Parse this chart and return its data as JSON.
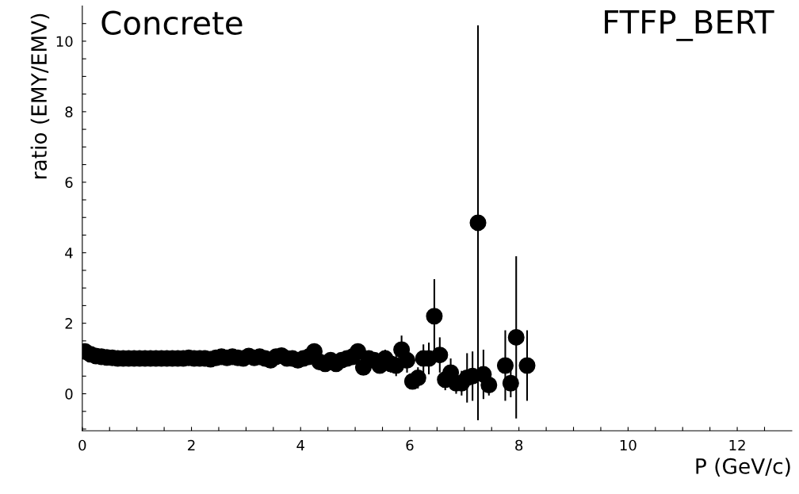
{
  "chart_data": {
    "type": "scatter",
    "xlabel": "P (GeV/c)",
    "ylabel": "ratio (EMY/EMV)",
    "annotations": [
      "Concrete",
      "FTFP_BERT"
    ],
    "x": [
      0.05,
      0.15,
      0.25,
      0.35,
      0.45,
      0.55,
      0.65,
      0.75,
      0.85,
      0.95,
      1.05,
      1.15,
      1.25,
      1.35,
      1.45,
      1.55,
      1.65,
      1.75,
      1.85,
      1.95,
      2.05,
      2.15,
      2.25,
      2.35,
      2.45,
      2.55,
      2.65,
      2.75,
      2.85,
      2.95,
      3.05,
      3.15,
      3.25,
      3.35,
      3.45,
      3.55,
      3.65,
      3.75,
      3.85,
      3.95,
      4.05,
      4.15,
      4.25,
      4.35,
      4.45,
      4.55,
      4.65,
      4.75,
      4.85,
      4.95,
      5.05,
      5.15,
      5.25,
      5.35,
      5.45,
      5.55,
      5.65,
      5.75,
      5.85,
      5.95,
      6.05,
      6.15,
      6.25,
      6.35,
      6.45,
      6.55,
      6.65,
      6.75,
      6.85,
      6.95,
      7.05,
      7.15,
      7.25,
      7.35,
      7.45,
      7.75,
      7.85,
      7.95,
      8.15
    ],
    "series": [
      {
        "color": "#000000",
        "values": [
          1.2,
          1.12,
          1.07,
          1.05,
          1.03,
          1.02,
          1.0,
          1.0,
          1.0,
          1.0,
          1.0,
          1.0,
          1.0,
          1.0,
          1.0,
          1.0,
          1.0,
          1.0,
          1.0,
          1.02,
          1.0,
          1.0,
          1.0,
          0.98,
          1.02,
          1.05,
          1.02,
          1.05,
          1.02,
          1.0,
          1.07,
          1.02,
          1.05,
          1.0,
          0.95,
          1.05,
          1.08,
          1.0,
          1.0,
          0.95,
          1.0,
          1.05,
          1.2,
          0.9,
          0.85,
          0.95,
          0.85,
          0.95,
          1.0,
          1.05,
          1.2,
          0.75,
          1.0,
          0.95,
          0.8,
          1.0,
          0.85,
          0.8,
          1.25,
          0.95,
          0.35,
          0.45,
          1.0,
          1.0,
          2.2,
          1.1,
          0.4,
          0.6,
          0.3,
          0.3,
          0.45,
          0.5,
          4.85,
          0.55,
          0.25,
          0.8,
          0.3,
          1.6,
          0.8
        ],
        "errors": [
          null,
          null,
          null,
          null,
          null,
          null,
          null,
          null,
          null,
          null,
          null,
          null,
          null,
          null,
          null,
          null,
          null,
          null,
          null,
          null,
          null,
          null,
          null,
          null,
          null,
          null,
          null,
          null,
          null,
          null,
          null,
          null,
          null,
          null,
          null,
          null,
          null,
          null,
          null,
          null,
          null,
          null,
          null,
          null,
          null,
          null,
          null,
          null,
          null,
          null,
          0.15,
          0.2,
          0.2,
          0.2,
          0.2,
          0.25,
          0.25,
          0.3,
          0.4,
          0.35,
          0.2,
          0.3,
          0.4,
          0.45,
          1.05,
          0.5,
          0.3,
          0.4,
          0.3,
          0.35,
          0.7,
          0.7,
          5.6,
          0.7,
          0.3,
          1.0,
          0.4,
          2.3,
          1.0
        ]
      }
    ],
    "xlim": [
      0,
      13
    ],
    "ylim": [
      -1.05,
      11
    ],
    "marker": "circle",
    "xticks": [
      0,
      {
        "value": 0.5,
        "label": null
      },
      {
        "value": 1,
        "label": null
      },
      {
        "value": 1.5,
        "label": null
      },
      2,
      {
        "value": 2.5,
        "label": null
      },
      {
        "value": 3,
        "label": null
      },
      {
        "value": 3.5,
        "label": null
      },
      4,
      {
        "value": 4.5,
        "label": null
      },
      {
        "value": 5,
        "label": null
      },
      {
        "value": 5.5,
        "label": null
      },
      6,
      {
        "value": 6.5,
        "label": null
      },
      {
        "value": 7,
        "label": null
      },
      {
        "value": 7.5,
        "label": null
      },
      8,
      {
        "value": 8.5,
        "label": null
      },
      {
        "value": 9,
        "label": null
      },
      {
        "value": 9.5,
        "label": null
      },
      10,
      {
        "value": 10.5,
        "label": null
      },
      {
        "value": 11,
        "label": null
      },
      {
        "value": 11.5,
        "label": null
      },
      12,
      {
        "value": 12.5,
        "label": null
      }
    ],
    "yticks": [
      {
        "value": -1,
        "label": null
      },
      {
        "value": -0.5,
        "label": null
      },
      0,
      {
        "value": 0.5,
        "label": null
      },
      {
        "value": 1,
        "label": null
      },
      {
        "value": 1.5,
        "label": null
      },
      2,
      {
        "value": 2.5,
        "label": null
      },
      {
        "value": 3,
        "label": null
      },
      {
        "value": 3.5,
        "label": null
      },
      4,
      {
        "value": 4.5,
        "label": null
      },
      {
        "value": 5,
        "label": null
      },
      {
        "value": 5.5,
        "label": null
      },
      6,
      {
        "value": 6.5,
        "label": null
      },
      {
        "value": 7,
        "label": null
      },
      {
        "value": 7.5,
        "label": null
      },
      8,
      {
        "value": 8.5,
        "label": null
      },
      {
        "value": 9,
        "label": null
      },
      {
        "value": 9.5,
        "label": null
      },
      10,
      {
        "value": 10.5,
        "label": null
      }
    ],
    "grid": false
  }
}
